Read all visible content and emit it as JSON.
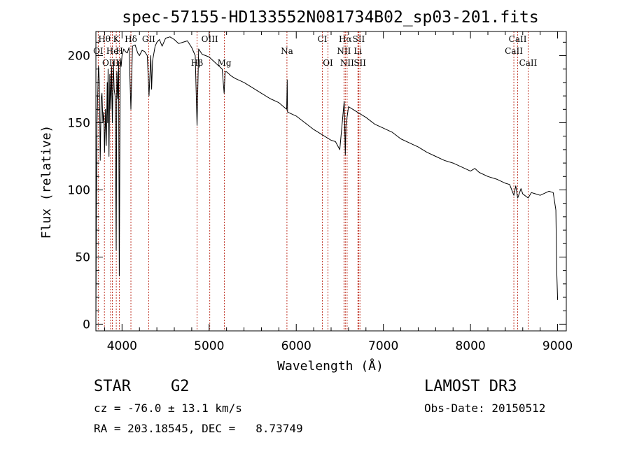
{
  "chart_data": {
    "type": "line",
    "title": "spec-57155-HD133552N081734B02_sp03-201.fits",
    "xlabel": "Wavelength (Å)",
    "ylabel": "Flux (relative)",
    "xlim": [
      3700,
      9100
    ],
    "ylim": [
      -5,
      218
    ],
    "xticks": [
      4000,
      5000,
      6000,
      7000,
      8000,
      9000
    ],
    "yticks": [
      0,
      50,
      100,
      150,
      200
    ],
    "series": [
      {
        "name": "flux",
        "x": [
          3700,
          3705,
          3712,
          3720,
          3730,
          3740,
          3750,
          3760,
          3770,
          3780,
          3790,
          3800,
          3810,
          3820,
          3830,
          3835,
          3840,
          3850,
          3860,
          3870,
          3880,
          3889,
          3900,
          3910,
          3920,
          3933,
          3940,
          3950,
          3960,
          3968,
          3980,
          3990,
          4000,
          4020,
          4040,
          4060,
          4080,
          4102,
          4120,
          4150,
          4180,
          4200,
          4230,
          4260,
          4290,
          4310,
          4330,
          4340,
          4350,
          4380,
          4400,
          4430,
          4460,
          4500,
          4550,
          4600,
          4650,
          4700,
          4750,
          4800,
          4840,
          4861,
          4880,
          4920,
          4960,
          5000,
          5050,
          5100,
          5150,
          5172,
          5183,
          5200,
          5250,
          5300,
          5400,
          5500,
          5600,
          5700,
          5800,
          5890,
          5896,
          5900,
          6000,
          6100,
          6200,
          6300,
          6400,
          6450,
          6500,
          6550,
          6563,
          6570,
          6600,
          6700,
          6800,
          6900,
          7000,
          7100,
          7200,
          7300,
          7400,
          7500,
          7600,
          7700,
          7800,
          7900,
          8000,
          8050,
          8100,
          8200,
          8300,
          8400,
          8450,
          8498,
          8520,
          8542,
          8580,
          8600,
          8662,
          8700,
          8800,
          8900,
          8950,
          8980,
          8990,
          8995,
          9000
        ],
        "y": [
          0,
          82,
          148,
          168,
          192,
          180,
          122,
          168,
          172,
          150,
          158,
          128,
          160,
          133,
          180,
          150,
          190,
          125,
          186,
          160,
          192,
          150,
          196,
          175,
          170,
          55,
          188,
          168,
          196,
          36,
          198,
          192,
          200,
          205,
          203,
          202,
          206,
          160,
          207,
          208,
          202,
          200,
          204,
          203,
          200,
          170,
          200,
          175,
          196,
          207,
          210,
          212,
          207,
          213,
          214,
          212,
          209,
          210,
          211,
          206,
          200,
          148,
          205,
          201,
          200,
          199,
          196,
          193,
          190,
          172,
          188,
          188,
          185,
          183,
          180,
          176,
          172,
          168,
          165,
          160,
          182,
          158,
          155,
          150,
          145,
          141,
          137,
          136,
          130,
          166,
          126,
          148,
          162,
          158,
          154,
          149,
          146,
          143,
          138,
          135,
          132,
          128,
          125,
          122,
          120,
          117,
          114,
          116,
          113,
          110,
          108,
          105,
          104,
          96,
          103,
          94,
          101,
          97,
          94,
          98,
          96,
          99,
          98,
          85,
          40,
          30,
          18
        ]
      }
    ],
    "lines": [
      {
        "label": "Hθ",
        "wl": 3798,
        "row": 0
      },
      {
        "label": "K",
        "wl": 3934,
        "row": 0
      },
      {
        "label": "Hδ",
        "wl": 4102,
        "row": 0
      },
      {
        "label": "GII",
        "wl": 4306,
        "row": 0
      },
      {
        "label": "OIII",
        "wl": 5007,
        "row": 0
      },
      {
        "label": "CI",
        "wl": 6300,
        "row": 0
      },
      {
        "label": "Hα",
        "wl": 6563,
        "row": 0
      },
      {
        "label": "SII",
        "wl": 6717,
        "row": 0
      },
      {
        "label": "CaII",
        "wl": 8542,
        "row": 0
      },
      {
        "label": "OI",
        "wl": 3727,
        "row": 1
      },
      {
        "label": "He",
        "wl": 3889,
        "row": 1
      },
      {
        "label": "H",
        "wl": 3970,
        "row": 1
      },
      {
        "label": "Na",
        "wl": 5893,
        "row": 1
      },
      {
        "label": "NII",
        "wl": 6548,
        "row": 1
      },
      {
        "label": "Li",
        "wl": 6708,
        "row": 1
      },
      {
        "label": "CaII",
        "wl": 8498,
        "row": 1
      },
      {
        "label": "OIII",
        "wl": 3869,
        "row": 2
      },
      {
        "label": "Hβ",
        "wl": 4861,
        "row": 2
      },
      {
        "label": "Mg",
        "wl": 5175,
        "row": 2
      },
      {
        "label": "OI",
        "wl": 6364,
        "row": 2
      },
      {
        "label": "NII",
        "wl": 6584,
        "row": 2
      },
      {
        "label": "SII",
        "wl": 6731,
        "row": 2
      },
      {
        "label": "CaII",
        "wl": 8662,
        "row": 2
      }
    ],
    "grid": false,
    "legend": "none",
    "line_color": "#000000",
    "marker_color": "#c0392b"
  },
  "info": {
    "class": "STAR",
    "subclass": "G2",
    "survey": "LAMOST DR3",
    "cz": "cz = -76.0 ± 13.1 km/s",
    "obs_date": "Obs-Date: 20150512",
    "radec": "RA = 203.18545, DEC =   8.73749"
  }
}
